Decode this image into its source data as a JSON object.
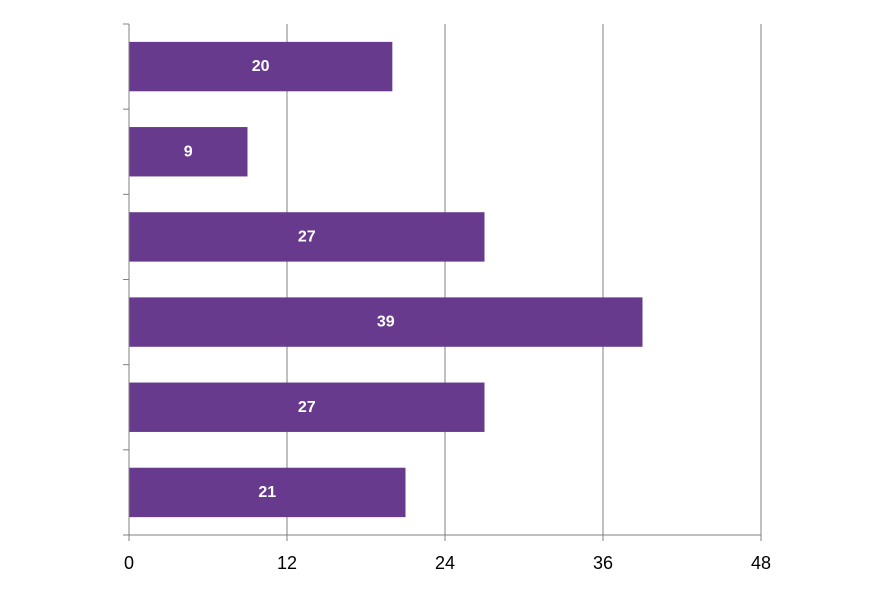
{
  "chart_data": {
    "type": "bar",
    "orientation": "horizontal",
    "categories": [
      "",
      "",
      "",
      "",
      "",
      ""
    ],
    "values": [
      20,
      9,
      27,
      39,
      27,
      21
    ],
    "data_labels": [
      "20",
      "9",
      "27",
      "39",
      "27",
      "21"
    ],
    "xlim": [
      0,
      48
    ],
    "x_ticks": [
      0,
      12,
      24,
      36,
      48
    ],
    "x_tick_labels": [
      "0",
      "12",
      "24",
      "36",
      "48"
    ],
    "grid": "vertical",
    "legend": "none",
    "title": "",
    "xlabel": "",
    "ylabel": "",
    "colors": {
      "bar": "#673a8e",
      "grid": "#808080",
      "axis": "#808080",
      "label": "#ffffff"
    }
  }
}
